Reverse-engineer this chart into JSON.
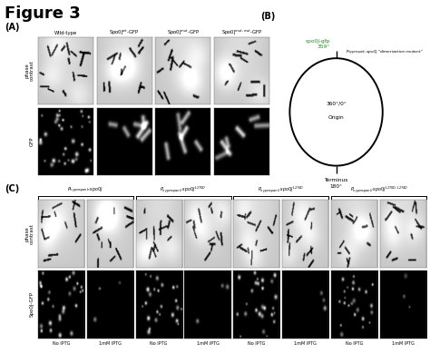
{
  "figure_title": "Figure 3",
  "title_fontsize": 13,
  "title_fontweight": "bold",
  "background_color": "#ffffff",
  "panel_A_label": "(A)",
  "panel_B_label": "(B)",
  "panel_C_label": "(C)",
  "col_labels_A": [
    "Wild-type",
    "Spo0J$^{wt}$-GFP",
    "Spo0J$^{mut}$-GFP",
    "Spo0J$^{mut,mut}$-GFP"
  ],
  "row_labels_A": [
    "phase\ncontrast",
    "GFP"
  ],
  "top_label_green": "spo0J-gfp\n359°",
  "top_label_black": "P$_{hyperspank}$-spo0J \"dimerization mutant\"",
  "center_label_line1": "360°/0°",
  "center_label_line2": "Origin",
  "bottom_label": "Terminus\n180°",
  "group_labels_C": [
    "P$_{hyperspank}$-$spo0J$",
    "P$_{hyperspank}$-$spo0J^{L270D}$",
    "P$_{hyperspank}$-$spo0J^{L274D}$",
    "P$_{hyperspank}$-$spo0J^{L270D,L274D}$"
  ],
  "row_labels_C": [
    "phase\ncontrast",
    "Spo0J-GFP"
  ],
  "sub_labels_C": [
    "No IPTG",
    "1mM IPTG"
  ],
  "green_color": "#228B22",
  "black_color": "#000000"
}
